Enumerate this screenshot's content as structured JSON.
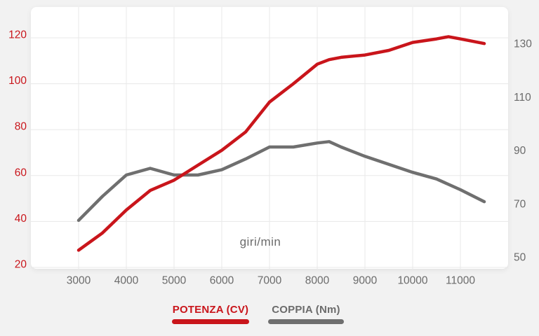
{
  "chart_data": {
    "type": "line",
    "title": "",
    "xlabel": "giri/min",
    "x_range": [
      2000,
      12000
    ],
    "x_ticks": [
      3000,
      4000,
      5000,
      6000,
      7000,
      8000,
      9000,
      10000,
      11000
    ],
    "grid": "both",
    "legend_position": "bottom",
    "axes": {
      "left": {
        "ticks": [
          120,
          100,
          80,
          60,
          40,
          20
        ],
        "range": [
          20,
          120
        ],
        "unit": "CV",
        "color": "#c9151b"
      },
      "right": {
        "ticks": [
          130,
          110,
          90,
          70,
          50
        ],
        "range": [
          50,
          130
        ],
        "unit": "Nm",
        "color": "#6b6b6b"
      }
    },
    "series": [
      {
        "name": "POTENZA (CV)",
        "axis": "left",
        "color": "#c9151b",
        "points": [
          [
            3000,
            27.5
          ],
          [
            3500,
            35
          ],
          [
            4000,
            45
          ],
          [
            4500,
            53.5
          ],
          [
            5000,
            58
          ],
          [
            5500,
            64.5
          ],
          [
            6000,
            71
          ],
          [
            6500,
            79
          ],
          [
            7000,
            92
          ],
          [
            7500,
            100
          ],
          [
            8000,
            108.5
          ],
          [
            8250,
            110.5
          ],
          [
            8500,
            111.5
          ],
          [
            9000,
            112.5
          ],
          [
            9500,
            114.5
          ],
          [
            10000,
            118
          ],
          [
            10500,
            119.5
          ],
          [
            10750,
            120.5
          ],
          [
            11000,
            119.5
          ],
          [
            11500,
            117.5
          ]
        ]
      },
      {
        "name": "COPPIA (Nm)",
        "axis": "right",
        "color": "#6f6f6f",
        "points": [
          [
            3000,
            65
          ],
          [
            3500,
            74
          ],
          [
            4000,
            82
          ],
          [
            4500,
            84.5
          ],
          [
            5000,
            82
          ],
          [
            5500,
            82
          ],
          [
            6000,
            84
          ],
          [
            6500,
            88
          ],
          [
            7000,
            92.5
          ],
          [
            7500,
            92.5
          ],
          [
            8000,
            94
          ],
          [
            8250,
            94.5
          ],
          [
            8500,
            92.5
          ],
          [
            9000,
            89
          ],
          [
            9500,
            86
          ],
          [
            10000,
            83
          ],
          [
            10500,
            80.5
          ],
          [
            11000,
            76.5
          ],
          [
            11500,
            72
          ]
        ]
      }
    ]
  },
  "colors": {
    "background": "#f2f2f2",
    "card": "#ffffff",
    "grid": "#e8e8e8",
    "accent_red": "#c9151b",
    "line_gray": "#6f6f6f",
    "tick_gray": "#6b6b6b"
  }
}
